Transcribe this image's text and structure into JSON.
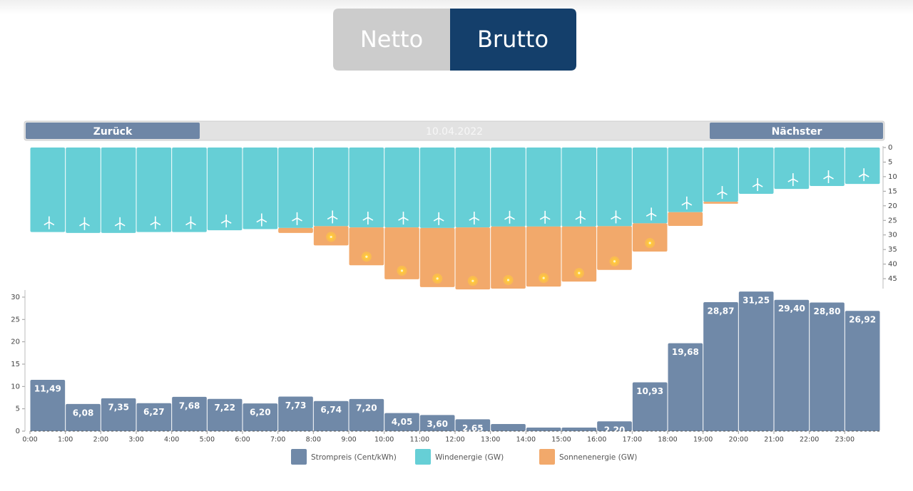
{
  "toggle": {
    "options": [
      "Netto",
      "Brutto"
    ],
    "active": 1
  },
  "nav": {
    "prev": "Zurück",
    "date": "10.04.2022",
    "next": "Nächster"
  },
  "chart_data": [
    {
      "type": "bar",
      "stacked": true,
      "inverted": true,
      "series": [
        {
          "name": "Windenergie (GW)",
          "color": "#66cfd6",
          "values": [
            29,
            29.3,
            29.3,
            29,
            29,
            28.4,
            28,
            27.6,
            27,
            27.4,
            27.4,
            27.6,
            27.4,
            27.1,
            27.1,
            27.1,
            27,
            26,
            22.2,
            18.6,
            15.9,
            14.2,
            13.2,
            12.5
          ]
        },
        {
          "name": "Sonnenenergie (GW)",
          "color": "#f2a96b",
          "values": [
            0,
            0,
            0,
            0,
            0,
            0,
            0,
            1.7,
            6.6,
            13,
            17.8,
            20.3,
            21.3,
            21.3,
            20.6,
            18.9,
            15,
            9.7,
            4.7,
            0.7,
            0,
            0,
            0,
            0
          ]
        }
      ],
      "ylim": [
        0,
        50
      ],
      "yticks": [
        0,
        5,
        10,
        15,
        20,
        25,
        30,
        35,
        40,
        45
      ]
    },
    {
      "type": "bar",
      "categories": [
        "0:00",
        "1:00",
        "2:00",
        "3:00",
        "4:00",
        "5:00",
        "6:00",
        "7:00",
        "8:00",
        "9:00",
        "10:00",
        "11:00",
        "12:00",
        "13:00",
        "14:00",
        "15:00",
        "16:00",
        "17:00",
        "18:00",
        "19:00",
        "20:00",
        "21:00",
        "22:00",
        "23:00"
      ],
      "series": [
        {
          "name": "Strompreis (Cent/kWh)",
          "color": "#7089a8",
          "values": [
            11.49,
            6.08,
            7.35,
            6.27,
            7.68,
            7.22,
            6.2,
            7.73,
            6.74,
            7.2,
            4.05,
            3.6,
            2.65,
            1.6,
            0.8,
            0.8,
            2.2,
            10.93,
            19.68,
            28.87,
            31.25,
            29.4,
            28.8,
            26.92
          ],
          "value_labels": [
            "11,49",
            "6,08",
            "7,35",
            "6,27",
            "7,68",
            "7,22",
            "6,20",
            "7,73",
            "6,74",
            "7,20",
            "4,05",
            "3,60",
            "2,65",
            null,
            null,
            null,
            "2,20",
            "10,93",
            "19,68",
            "28,87",
            "31,25",
            "29,40",
            "28,80",
            "26,92"
          ]
        }
      ],
      "ylim": [
        0,
        32
      ],
      "yticks": [
        0,
        5,
        10,
        15,
        20,
        25,
        30
      ]
    }
  ]
}
